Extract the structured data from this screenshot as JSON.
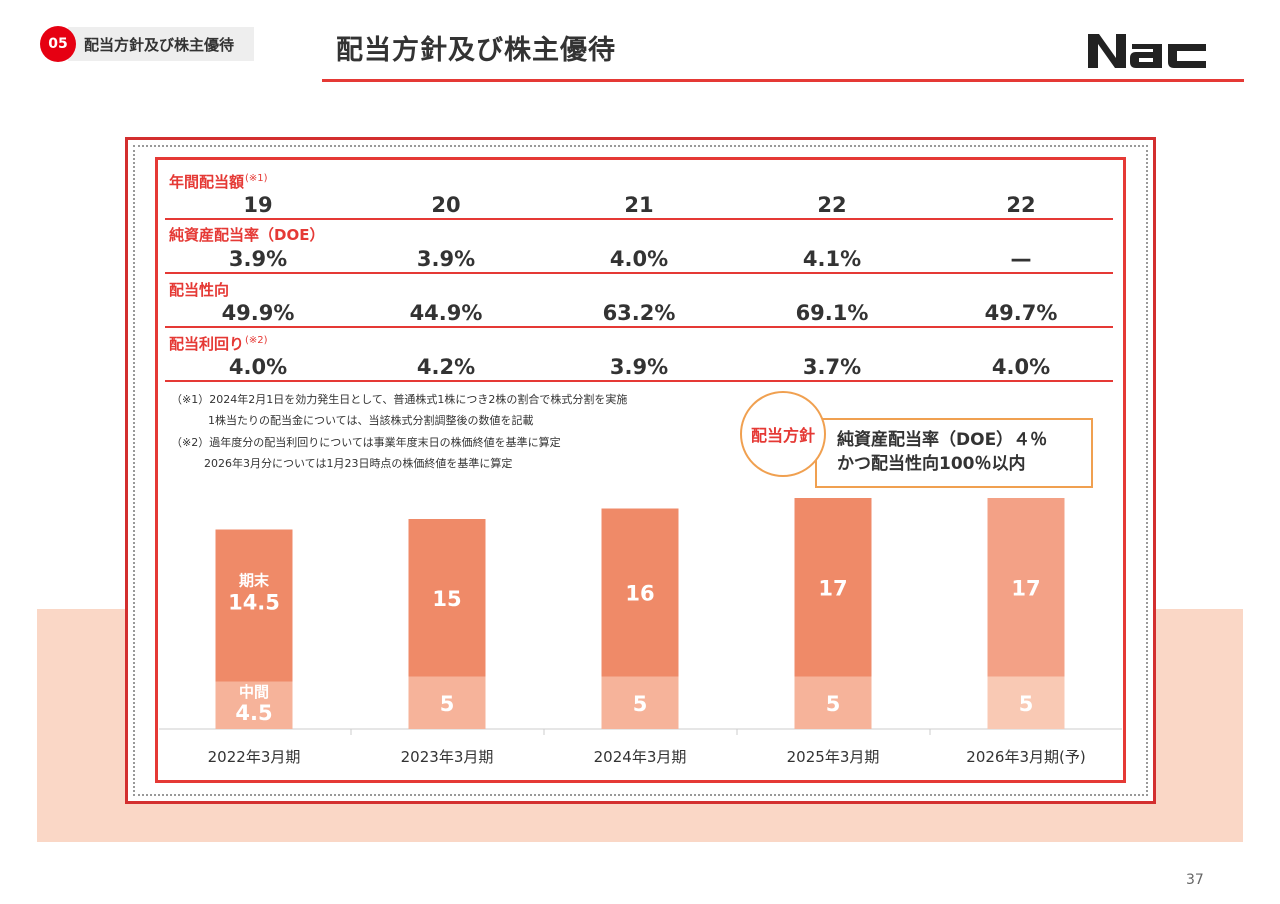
{
  "header": {
    "section_number": "05",
    "section_label": "配当方針及び株主優待",
    "page_title": "配当方針及び株主優待",
    "logo_text": "Nac"
  },
  "table": {
    "rows": [
      {
        "label": "年間配当額",
        "note_mark": "(※1)",
        "values": [
          "19",
          "20",
          "21",
          "22",
          "22"
        ]
      },
      {
        "label": "純資産配当率（DOE）",
        "note_mark": "",
        "values": [
          "3.9%",
          "3.9%",
          "4.0%",
          "4.1%",
          "—"
        ]
      },
      {
        "label": "配当性向",
        "note_mark": "",
        "values": [
          "49.9%",
          "44.9%",
          "63.2%",
          "69.1%",
          "49.7%"
        ]
      },
      {
        "label": "配当利回り",
        "note_mark": "(※2)",
        "values": [
          "4.0%",
          "4.2%",
          "3.9%",
          "3.7%",
          "4.0%"
        ]
      }
    ]
  },
  "notes": {
    "n1_line1": "（※1）2024年2月1日を効力発生日として、普通株式1株につき2株の割合で株式分割を実施",
    "n1_line2": "1株当たりの配当金については、当該株式分割調整後の数値を記載",
    "n2_line1": "（※2）過年度分の配当利回りについては事業年度末日の株価終値を基準に算定",
    "n2_line2": "2026年3月分については1月23日時点の株価終値を基準に算定"
  },
  "policy": {
    "badge": "配当方針",
    "line1": "純資産配当率（DOE）４％",
    "line2": "かつ配当性向100％以内"
  },
  "colors": {
    "accent": "#e53935",
    "bar_final": "#ef8a68",
    "bar_interim": "#f6b39a",
    "bar_final_forecast": "#f3a186",
    "bar_interim_forecast": "#f9c9b4",
    "peach_band": "#fad7c6",
    "policy_border": "#f0a050"
  },
  "chart_data": {
    "type": "bar",
    "stacked": true,
    "title": "",
    "xlabel": "",
    "ylabel": "",
    "categories": [
      "2022年3月期",
      "2023年3月期",
      "2024年3月期",
      "2025年3月期",
      "2026年3月期(予)"
    ],
    "series": [
      {
        "name": "中間",
        "values": [
          4.5,
          5,
          5,
          5,
          5
        ]
      },
      {
        "name": "期末",
        "values": [
          14.5,
          15,
          16,
          17,
          17
        ]
      }
    ],
    "value_labels": {
      "中間": [
        "4.5",
        "5",
        "5",
        "5",
        "5"
      ],
      "期末": [
        "14.5",
        "15",
        "16",
        "17",
        "17"
      ]
    },
    "forecast_index": 4,
    "ylim": [
      0,
      22
    ]
  },
  "page_number": "37"
}
